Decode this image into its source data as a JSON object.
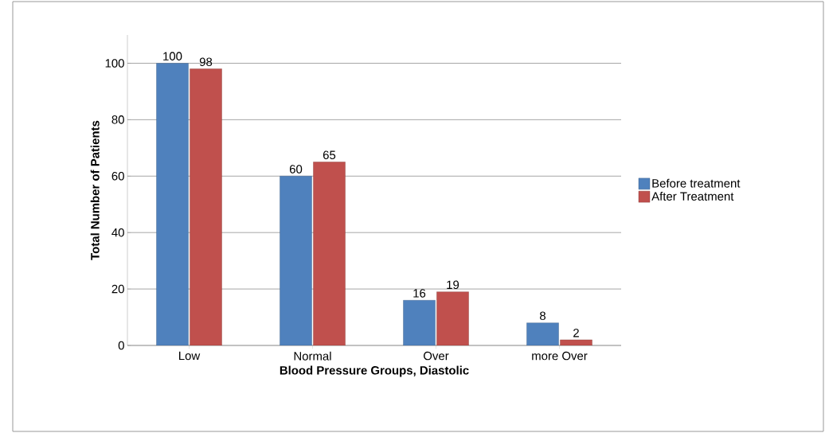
{
  "chart_data": {
    "type": "bar",
    "xlabel": "Blood Pressure Groups, Diastolic",
    "ylabel": "Total Number of Patients",
    "categories": [
      "Low",
      "Normal",
      "Over",
      "more Over"
    ],
    "series": [
      {
        "name": "Before treatment",
        "color": "#4f81bd",
        "values": [
          100,
          60,
          16,
          8
        ]
      },
      {
        "name": "After Treatment",
        "color": "#c0504d",
        "values": [
          98,
          65,
          19,
          2
        ]
      }
    ],
    "ylim": [
      0,
      110
    ],
    "yticks": [
      0,
      20,
      40,
      60,
      80,
      100
    ],
    "grid": "y",
    "legend": "right",
    "data_labels": true
  }
}
